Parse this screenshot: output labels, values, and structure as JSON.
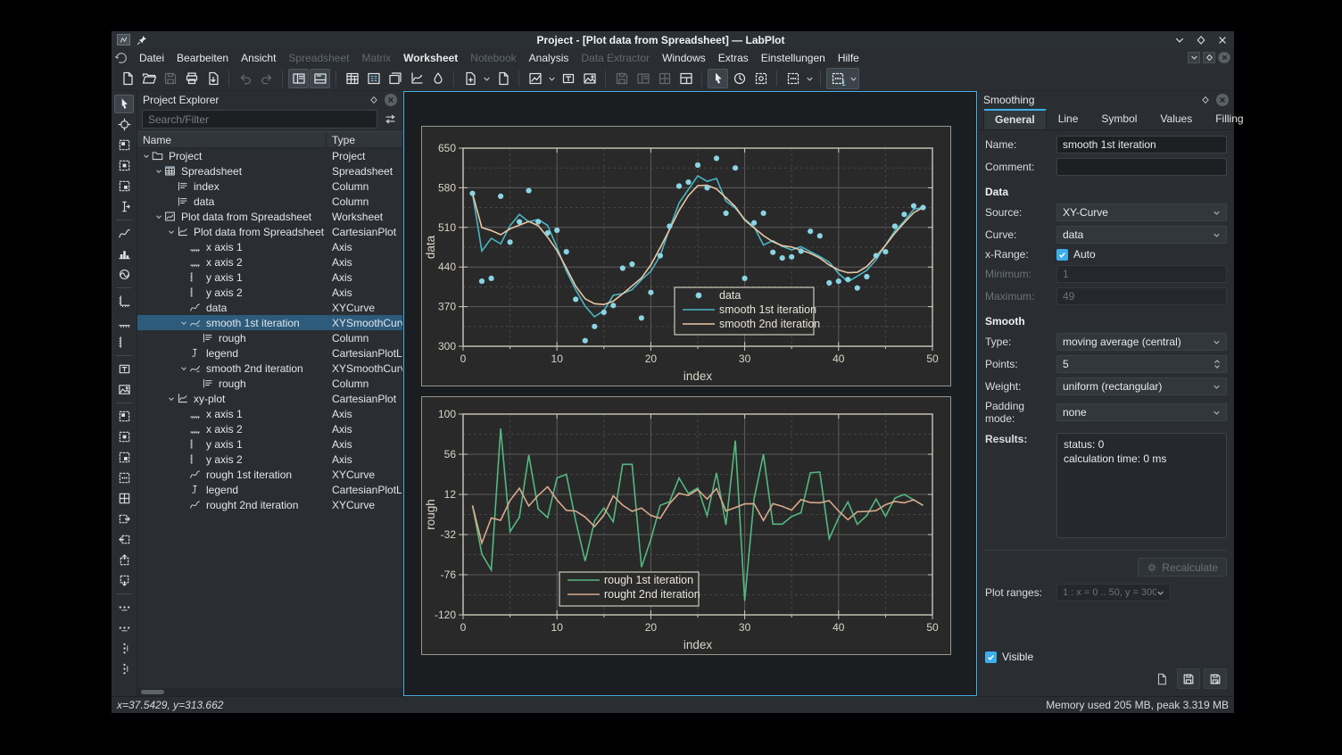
{
  "window": {
    "title": "Project - [Plot data from Spreadsheet] — LabPlot"
  },
  "menu": {
    "items": [
      {
        "label": "Datei",
        "enabled": true
      },
      {
        "label": "Bearbeiten",
        "enabled": true
      },
      {
        "label": "Ansicht",
        "enabled": true
      },
      {
        "label": "Spreadsheet",
        "enabled": false
      },
      {
        "label": "Matrix",
        "enabled": false
      },
      {
        "label": "Worksheet",
        "enabled": true,
        "bold": true
      },
      {
        "label": "Notebook",
        "enabled": false
      },
      {
        "label": "Analysis",
        "enabled": true
      },
      {
        "label": "Data Extractor",
        "enabled": false
      },
      {
        "label": "Windows",
        "enabled": true
      },
      {
        "label": "Extras",
        "enabled": true
      },
      {
        "label": "Einstellungen",
        "enabled": true
      },
      {
        "label": "Hilfe",
        "enabled": true
      }
    ]
  },
  "toolbar": {
    "groups": [
      [
        {
          "icon": "doc",
          "name": "new-project"
        },
        {
          "icon": "open",
          "name": "open-project"
        },
        {
          "icon": "floppy",
          "name": "save-project",
          "disabled": true
        },
        {
          "icon": "print",
          "name": "print"
        },
        {
          "icon": "export",
          "name": "export-preview"
        }
      ],
      [
        {
          "icon": "undo",
          "name": "undo",
          "disabled": true
        },
        {
          "icon": "redo",
          "name": "redo",
          "disabled": true
        }
      ],
      [
        {
          "icon": "panela",
          "name": "toggle-project-explorer",
          "active": true
        },
        {
          "icon": "panelb",
          "name": "toggle-properties-explorer",
          "active": true
        }
      ],
      [
        {
          "icon": "sheet",
          "name": "new-spreadsheet"
        },
        {
          "icon": "matrix",
          "name": "new-matrix"
        },
        {
          "icon": "workbook",
          "name": "new-workbook"
        },
        {
          "icon": "plot",
          "name": "new-worksheet"
        },
        {
          "icon": "ink",
          "name": "new-notebook"
        }
      ],
      [
        {
          "icon": "docplus",
          "name": "new-datapicker",
          "chevron": true
        },
        {
          "icon": "doc",
          "name": "new-document"
        }
      ],
      [
        {
          "icon": "chart",
          "name": "new-plot-area",
          "chevron": true
        },
        {
          "icon": "tframe",
          "name": "new-text-frame"
        },
        {
          "icon": "image",
          "name": "new-image"
        }
      ],
      [
        {
          "icon": "floppy",
          "name": "tool-disabled-1",
          "disabled": true
        },
        {
          "icon": "panela",
          "name": "tool-disabled-2",
          "disabled": true
        },
        {
          "icon": "grid",
          "name": "tool-disabled-3",
          "disabled": true
        },
        {
          "icon": "layout",
          "name": "window-layout"
        }
      ],
      [
        {
          "icon": "cursor",
          "name": "select-mode",
          "active": true
        },
        {
          "icon": "clock",
          "name": "time-mode"
        },
        {
          "icon": "zoomsel",
          "name": "zoom-select-mode"
        }
      ],
      [
        {
          "icon": "dotsbox",
          "name": "cursor-tool",
          "chevron": true
        }
      ],
      [
        {
          "icon": "dotsbox",
          "name": "cursor-tool-plot",
          "badge": "1",
          "chevron": true,
          "boxed": true
        }
      ]
    ]
  },
  "left_toolbar": {
    "groups": [
      [
        {
          "icon": "cursor",
          "name": "select-cursor",
          "active": true
        },
        {
          "icon": "crosshair",
          "name": "navigate-crosshair"
        },
        {
          "icon": "zooma",
          "name": "zoom-select"
        },
        {
          "icon": "zoomb",
          "name": "zoom-x-select"
        },
        {
          "icon": "zoomc",
          "name": "zoom-y-select"
        },
        {
          "icon": "textcur",
          "name": "text-cursor"
        }
      ],
      [
        {
          "icon": "curve",
          "name": "add-xy-curve"
        },
        {
          "icon": "histo",
          "name": "add-histogram"
        },
        {
          "icon": "polar",
          "name": "add-polar-plot"
        }
      ],
      [
        {
          "icon": "axisbl",
          "name": "add-axis-both"
        },
        {
          "icon": "axisb",
          "name": "add-axis-horizontal"
        },
        {
          "icon": "axisl",
          "name": "add-axis-vertical"
        }
      ],
      [
        {
          "icon": "tframe",
          "name": "add-text-frame"
        },
        {
          "icon": "image",
          "name": "add-image-frame"
        }
      ],
      [
        {
          "icon": "zooma",
          "name": "zoom-region"
        },
        {
          "icon": "zoomb",
          "name": "zoom-region-x"
        },
        {
          "icon": "zoomc",
          "name": "zoom-region-y"
        },
        {
          "icon": "dotsbox",
          "name": "select-region"
        },
        {
          "icon": "grid",
          "name": "grid-region"
        },
        {
          "icon": "boxr",
          "name": "shift-right"
        },
        {
          "icon": "boxl",
          "name": "shift-left"
        },
        {
          "icon": "boxu",
          "name": "shift-up"
        },
        {
          "icon": "boxd",
          "name": "shift-down"
        }
      ],
      [
        {
          "icon": "dotsh",
          "name": "scale-x"
        },
        {
          "icon": "dotsh",
          "name": "scale-auto-x"
        },
        {
          "icon": "dotsv",
          "name": "scale-y"
        },
        {
          "icon": "dotsv",
          "name": "scale-auto-y"
        }
      ]
    ]
  },
  "explorer": {
    "title": "Project Explorer",
    "search_placeholder": "Search/Filter",
    "columns": [
      "Name",
      "Type"
    ],
    "tree": [
      {
        "name": "Project",
        "type": "Project",
        "depth": 0,
        "icon": "folder",
        "expander": true
      },
      {
        "name": "Spreadsheet",
        "type": "Spreadsheet",
        "depth": 1,
        "icon": "table",
        "expander": true
      },
      {
        "name": "index",
        "type": "Column",
        "depth": 2,
        "icon": "column"
      },
      {
        "name": "data",
        "type": "Column",
        "depth": 2,
        "icon": "column"
      },
      {
        "name": "Plot data from Spreadsheet",
        "type": "Worksheet",
        "depth": 1,
        "icon": "wsheet",
        "expander": true
      },
      {
        "name": "Plot data from Spreadsheet",
        "type": "CartesianPlot",
        "depth": 2,
        "icon": "plot",
        "expander": true
      },
      {
        "name": "x axis 1",
        "type": "Axis",
        "depth": 3,
        "icon": "axisb"
      },
      {
        "name": "x axis 2",
        "type": "Axis",
        "depth": 3,
        "icon": "axisb"
      },
      {
        "name": "y axis 1",
        "type": "Axis",
        "depth": 3,
        "icon": "axisl"
      },
      {
        "name": "y axis 2",
        "type": "Axis",
        "depth": 3,
        "icon": "axisl"
      },
      {
        "name": "data",
        "type": "XYCurve",
        "depth": 3,
        "icon": "curve"
      },
      {
        "name": "smooth 1st iteration",
        "type": "XYSmoothCurve",
        "depth": 3,
        "icon": "smooth",
        "expander": true,
        "selected": true
      },
      {
        "name": "rough",
        "type": "Column",
        "depth": 4,
        "icon": "column"
      },
      {
        "name": "legend",
        "type": "CartesianPlotLegend",
        "depth": 3,
        "icon": "legend"
      },
      {
        "name": "smooth 2nd iteration",
        "type": "XYSmoothCurve",
        "depth": 3,
        "icon": "smooth",
        "expander": true
      },
      {
        "name": "rough",
        "type": "Column",
        "depth": 4,
        "icon": "column"
      },
      {
        "name": "xy-plot",
        "type": "CartesianPlot",
        "depth": 2,
        "icon": "plot",
        "expander": true
      },
      {
        "name": "x axis 1",
        "type": "Axis",
        "depth": 3,
        "icon": "axisb"
      },
      {
        "name": "x axis 2",
        "type": "Axis",
        "depth": 3,
        "icon": "axisb"
      },
      {
        "name": "y axis 1",
        "type": "Axis",
        "depth": 3,
        "icon": "axisl"
      },
      {
        "name": "y axis 2",
        "type": "Axis",
        "depth": 3,
        "icon": "axisl"
      },
      {
        "name": "rough 1st iteration",
        "type": "XYCurve",
        "depth": 3,
        "icon": "curve"
      },
      {
        "name": "legend",
        "type": "CartesianPlotLegend",
        "depth": 3,
        "icon": "legend"
      },
      {
        "name": "rought 2nd iteration",
        "type": "XYCurve",
        "depth": 3,
        "icon": "curve"
      }
    ]
  },
  "smoothing": {
    "title": "Smoothing",
    "tabs": [
      "General",
      "Line",
      "Symbol",
      "Values",
      "Filling"
    ],
    "active_tab": "General",
    "name_label": "Name:",
    "name_value": "smooth 1st iteration",
    "comment_label": "Comment:",
    "comment_value": "",
    "data_section": "Data",
    "source_label": "Source:",
    "source_value": "XY-Curve",
    "curve_label": "Curve:",
    "curve_value": "data",
    "xrange_label": "x-Range:",
    "auto_label": "Auto",
    "min_label": "Minimum:",
    "min_value": "1",
    "max_label": "Maximum:",
    "max_value": "49",
    "smooth_section": "Smooth",
    "type_label": "Type:",
    "type_value": "moving average (central)",
    "points_label": "Points:",
    "points_value": "5",
    "weight_label": "Weight:",
    "weight_value": "uniform (rectangular)",
    "padding_label": "Padding mode:",
    "padding_value": "none",
    "results_label": "Results:",
    "results_line1": "status: 0",
    "results_line2": "calculation time: 0 ms",
    "recalculate_label": "Recalculate",
    "plot_ranges_label": "Plot ranges:",
    "plot_ranges_value": "1 : x = 0 .. 50, y = 300 .. 650",
    "visible_label": "Visible"
  },
  "statusbar": {
    "left": "x=37.5429, y=313.662",
    "right": "Memory used 205 MB, peak 3.319 MB"
  },
  "colors": {
    "accent": "#3daee9",
    "axis": "#cdc9bd",
    "tick_label": "#d9d5c9",
    "grid_major": "#5c5c5c",
    "grid_minor": "#454545",
    "plot_bg": "#292929",
    "data_points": "#8ad4e4",
    "smooth1": "#4ab5c4",
    "smooth2": "#e9c6a4",
    "rough1": "#53b880",
    "rough2": "#d9a98c"
  },
  "chart_data": [
    {
      "type": "scatter",
      "title": "",
      "xlabel": "index",
      "ylabel": "data",
      "xlim": [
        0,
        50
      ],
      "ylim": [
        300,
        650
      ],
      "xticks": [
        0,
        10,
        20,
        30,
        40,
        50
      ],
      "yticks": [
        300,
        370,
        440,
        510,
        580,
        650
      ],
      "x_minor_step": 5,
      "y_minor_step": 35,
      "grid": "major solid, minor dashed",
      "x": [
        1,
        2,
        3,
        4,
        5,
        6,
        7,
        8,
        9,
        10,
        11,
        12,
        13,
        14,
        15,
        16,
        17,
        18,
        19,
        20,
        21,
        22,
        23,
        24,
        25,
        26,
        27,
        28,
        29,
        30,
        31,
        32,
        33,
        34,
        35,
        36,
        37,
        38,
        39,
        40,
        41,
        42,
        43,
        44,
        45,
        46,
        47,
        48,
        49
      ],
      "series": [
        {
          "key": "data",
          "name": "data",
          "type": "scatter",
          "color": "#8ad4e4",
          "values": [
            570,
            415,
            420,
            565,
            484,
            520,
            575,
            520,
            500,
            505,
            467,
            383,
            310,
            335,
            360,
            372,
            438,
            445,
            350,
            395,
            460,
            512,
            583,
            590,
            620,
            580,
            632,
            535,
            615,
            420,
            518,
            535,
            466,
            456,
            458,
            468,
            503,
            495,
            412,
            415,
            418,
            403,
            423,
            460,
            467,
            512,
            533,
            548,
            545
          ]
        },
        {
          "key": "smooth1",
          "name": "smooth 1st iteration",
          "type": "line",
          "color": "#4ab5c4",
          "derived": "5-point central moving average of data (padding none)"
        },
        {
          "key": "smooth2",
          "name": "smooth 2nd iteration",
          "type": "line",
          "color": "#e9c6a4",
          "derived": "5-point central moving average of smooth 1st iteration"
        }
      ],
      "legend": {
        "position": "center-right",
        "entries": [
          "data",
          "smooth 1st iteration",
          "smooth 2nd iteration"
        ]
      }
    },
    {
      "type": "line",
      "title": "",
      "xlabel": "index",
      "ylabel": "rough",
      "xlim": [
        0,
        50
      ],
      "ylim": [
        -120,
        100
      ],
      "xticks": [
        0,
        10,
        20,
        30,
        40,
        50
      ],
      "yticks": [
        -120,
        -76,
        -32,
        12,
        56,
        100
      ],
      "x_minor_step": 5,
      "y_minor_step": 22,
      "grid": "major solid, minor dashed",
      "series": [
        {
          "key": "rough1",
          "name": "rough 1st iteration",
          "type": "line",
          "color": "#53b880",
          "derived": "data minus smooth 1st iteration"
        },
        {
          "key": "rough2",
          "name": "rought 2nd iteration",
          "type": "line",
          "color": "#d9a98c",
          "derived": "smooth 1st iteration minus smooth 2nd iteration"
        }
      ],
      "legend": {
        "position": "bottom-center-left",
        "entries": [
          "rough 1st iteration",
          "rought 2nd iteration"
        ]
      }
    }
  ]
}
